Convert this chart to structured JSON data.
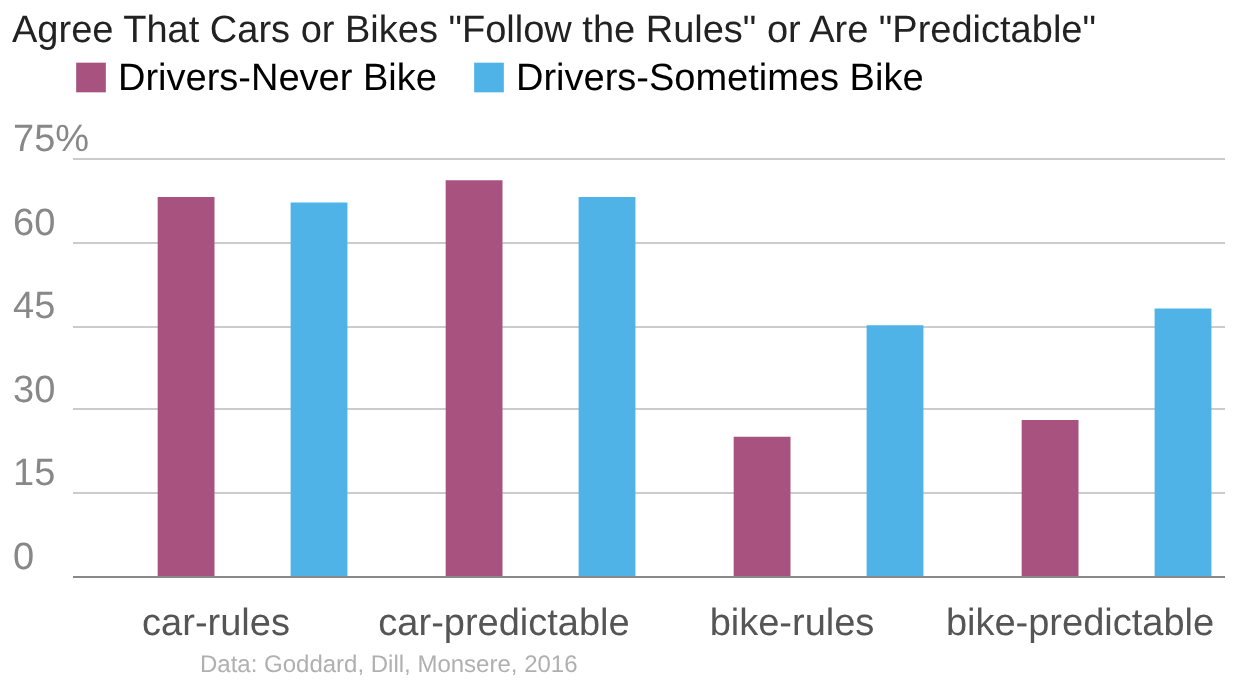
{
  "chart_data": {
    "type": "bar",
    "title": "Agree That Cars or Bikes \"Follow the Rules\" or Are \"Predictable\"",
    "categories": [
      "car-rules",
      "car-predictable",
      "bike-rules",
      "bike-predictable"
    ],
    "series": [
      {
        "name": "Drivers-Never Bike",
        "color": "#a8527f",
        "values": [
          68,
          71,
          25,
          28
        ]
      },
      {
        "name": "Drivers-Sometimes Bike",
        "color": "#4fb3e8",
        "values": [
          67,
          68,
          45,
          48
        ]
      }
    ],
    "ylim": [
      0,
      75
    ],
    "yticks": [
      0,
      15,
      30,
      45,
      60,
      {
        "value": 75,
        "label": "75%"
      }
    ],
    "grid": "y",
    "legend": "top left",
    "annotations": [
      "Data: Goddard, Dill, Monsere, 2016"
    ]
  }
}
